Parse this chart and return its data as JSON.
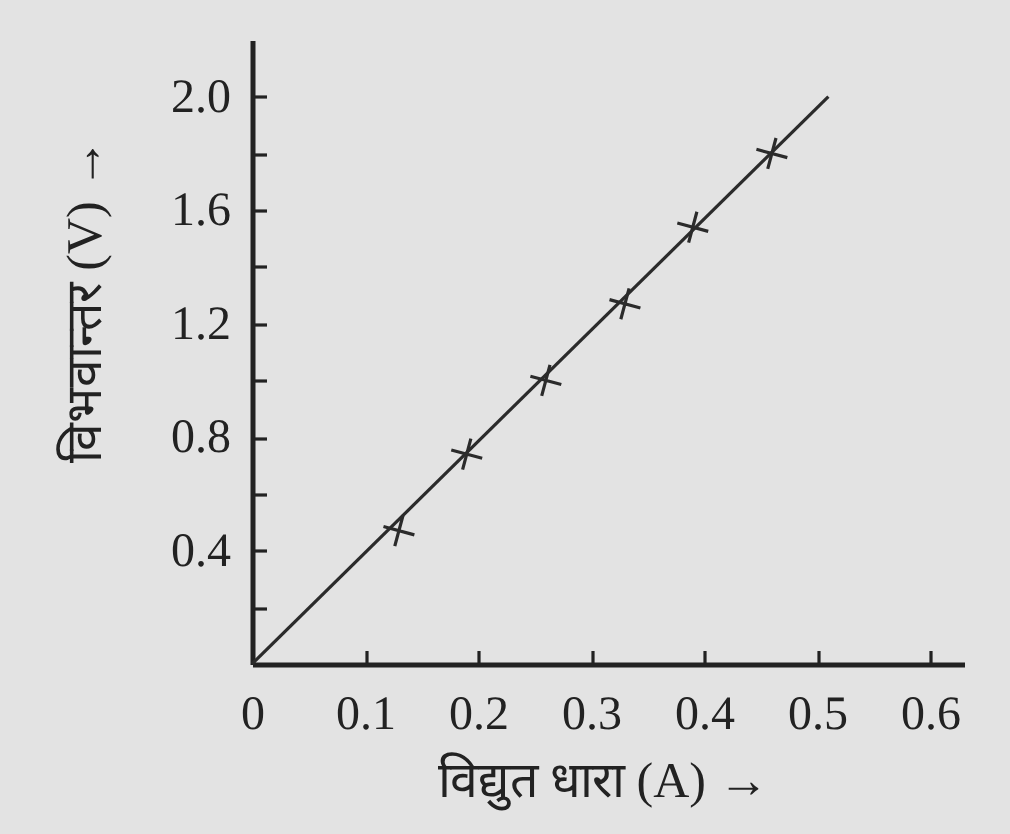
{
  "chart_data": {
    "type": "scatter",
    "xlabel": "विद्युत धारा (A) →",
    "ylabel": "विभवान्तर (V) →",
    "series": [
      {
        "type": "scatter",
        "color": "#2b2b2b",
        "marker": "cross",
        "x": [
          0.13,
          0.19,
          0.26,
          0.33,
          0.39,
          0.46
        ],
        "values": [
          0.47,
          0.74,
          1.0,
          1.27,
          1.54,
          1.8
        ]
      },
      {
        "type": "line",
        "color": "#2b2b2b",
        "marker": "none",
        "line_style": "solid",
        "x": [
          0,
          0.51
        ],
        "values": [
          0,
          2.0
        ]
      }
    ],
    "xlim": [
      0,
      0.63
    ],
    "ylim": [
      0,
      2.2
    ],
    "xticks": [
      0,
      0.1,
      0.2,
      0.3,
      0.4,
      0.5,
      0.6
    ],
    "yticks": [
      {
        "value": 0.2,
        "label": null
      },
      0.4,
      {
        "value": 0.6,
        "label": null
      },
      0.8,
      {
        "value": 1.0,
        "label": null
      },
      1.2,
      {
        "value": 1.4,
        "label": null
      },
      1.6,
      {
        "value": 1.8,
        "label": null
      },
      {
        "value": 2.0,
        "label": "2.0"
      }
    ],
    "grid": false
  }
}
